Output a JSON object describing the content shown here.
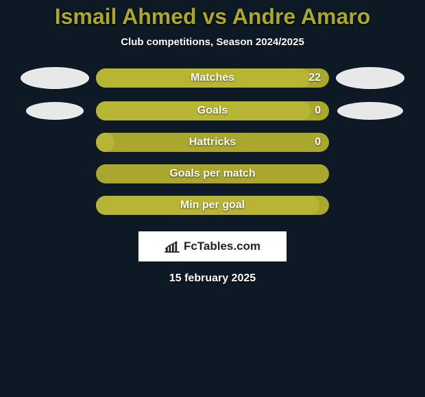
{
  "colors": {
    "background": "#0d1a26",
    "accent": "#a9a72e",
    "accent_light": "#b8b534",
    "ellipse": "#e8e8e8",
    "text": "#ffffff",
    "logo_bg": "#ffffff",
    "logo_text": "#222222"
  },
  "title": "Ismail Ahmed vs Andre Amaro",
  "subtitle": "Club competitions, Season 2024/2025",
  "rows": [
    {
      "label": "Matches",
      "value": "22",
      "fill_pct": 92,
      "show_ellipses": true
    },
    {
      "label": "Goals",
      "value": "0",
      "fill_pct": 92,
      "show_ellipses": true,
      "ellipse_narrow": true
    },
    {
      "label": "Hattricks",
      "value": "0",
      "fill_pct": 8,
      "show_ellipses": false
    },
    {
      "label": "Goals per match",
      "value": "",
      "fill_pct": 0,
      "show_ellipses": false
    },
    {
      "label": "Min per goal",
      "value": "",
      "fill_pct": 96,
      "show_ellipses": false
    }
  ],
  "logo_text": "FcTables.com",
  "date": "15 february 2025",
  "typography": {
    "title_fontsize": 32,
    "subtitle_fontsize": 15,
    "bar_label_fontsize": 16,
    "date_fontsize": 16
  }
}
